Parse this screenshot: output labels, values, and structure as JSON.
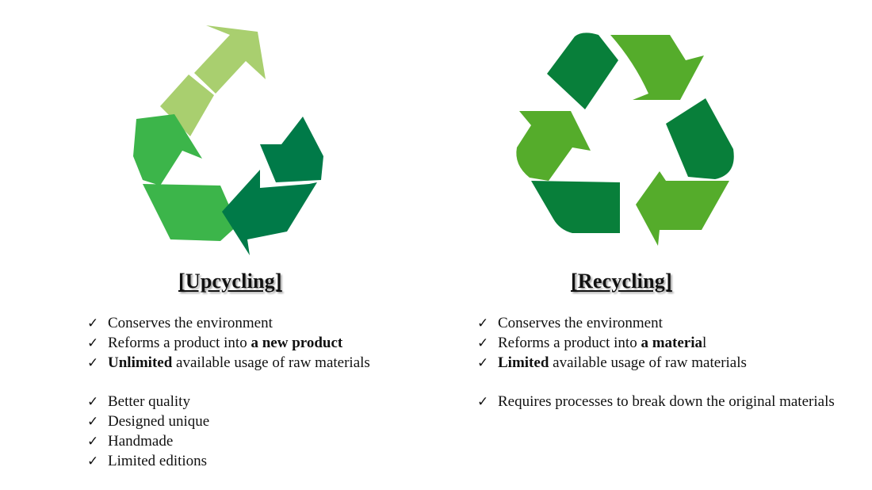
{
  "upcycling": {
    "title": "[Upcycling]",
    "colors": [
      "#a9cf6f",
      "#3cb54a",
      "#007a48"
    ],
    "icon": "upcycle-arrows-icon",
    "items": [
      {
        "pre": "Conserves the environment",
        "bold": "",
        "post": ""
      },
      {
        "pre": "Reforms a product into ",
        "bold": "a new product",
        "post": ""
      },
      {
        "pre": "",
        "bold": "Unlimited",
        "post": " available usage of raw materials"
      },
      {
        "pre": "Better quality",
        "bold": "",
        "post": "",
        "gap": true
      },
      {
        "pre": "Designed unique",
        "bold": "",
        "post": ""
      },
      {
        "pre": "Handmade",
        "bold": "",
        "post": ""
      },
      {
        "pre": "Limited editions",
        "bold": "",
        "post": ""
      }
    ]
  },
  "recycling": {
    "title": "[Recycling]",
    "colors": [
      "#087f3a",
      "#55ac2b"
    ],
    "icon": "recycle-arrows-icon",
    "items": [
      {
        "pre": "Conserves the environment",
        "bold": "",
        "post": ""
      },
      {
        "pre": "Reforms a product into ",
        "bold": "a materia",
        "post": "l"
      },
      {
        "pre": "",
        "bold": "Limited",
        "post": " available usage of raw materials"
      },
      {
        "pre": "Requires processes to break down the original materials",
        "bold": "",
        "post": "",
        "gap": true
      }
    ]
  },
  "check_mark": "✓"
}
